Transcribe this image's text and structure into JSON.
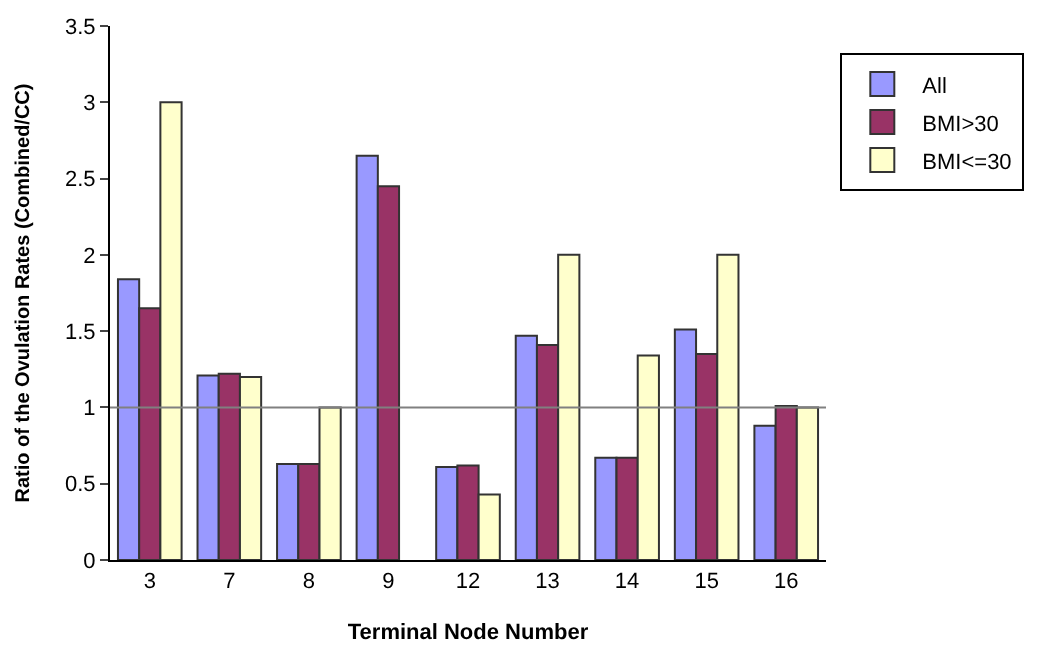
{
  "chart_data": {
    "type": "bar",
    "xlabel": "Terminal Node Number",
    "ylabel": "Ratio of the Ovulation Rates (Combined/CC)",
    "categories": [
      "3",
      "7",
      "8",
      "9",
      "12",
      "13",
      "14",
      "15",
      "16"
    ],
    "series": [
      {
        "name": "All",
        "color": "#9999ff",
        "values": [
          1.84,
          1.21,
          0.63,
          2.65,
          0.61,
          1.47,
          0.67,
          1.51,
          0.88
        ]
      },
      {
        "name": "BMI>30",
        "color": "#993366",
        "values": [
          1.65,
          1.22,
          0.63,
          2.45,
          0.62,
          1.41,
          0.67,
          1.35,
          1.01
        ]
      },
      {
        "name": "BMI<=30",
        "color": "#ffffcc",
        "values": [
          3.0,
          1.2,
          1.0,
          null,
          0.43,
          2.0,
          1.34,
          2.0,
          1.0
        ]
      }
    ],
    "ylim": [
      0,
      3.5
    ],
    "yticks": [
      0,
      0.5,
      1,
      1.5,
      2,
      2.5,
      3,
      3.5
    ],
    "ref_lines": [
      {
        "axis": "y",
        "value": 1,
        "color": "#808080",
        "line_style": "solid"
      }
    ],
    "legend": "right"
  }
}
